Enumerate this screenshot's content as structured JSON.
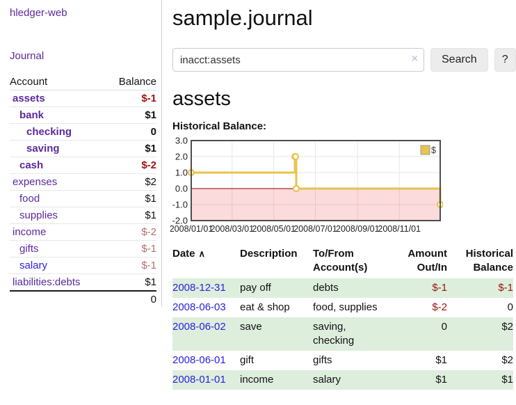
{
  "app": {
    "title": "hledger-web"
  },
  "sidebar": {
    "journal_label": "Journal",
    "accounts": {
      "header_account": "Account",
      "header_balance": "Balance",
      "rows": [
        {
          "name": "assets",
          "balance": "$-1",
          "indent": 0,
          "bold": true,
          "name_color": "purple",
          "balance_color": "neg-strong"
        },
        {
          "name": "bank",
          "balance": "$1",
          "indent": 1,
          "bold": true,
          "name_color": "purple",
          "balance_color": "pos"
        },
        {
          "name": "checking",
          "balance": "0",
          "indent": 2,
          "bold": true,
          "name_color": "purple",
          "balance_color": "pos"
        },
        {
          "name": "saving",
          "balance": "$1",
          "indent": 2,
          "bold": true,
          "name_color": "purple",
          "balance_color": "pos"
        },
        {
          "name": "cash",
          "balance": "$-2",
          "indent": 1,
          "bold": true,
          "name_color": "purple",
          "balance_color": "neg-strong"
        },
        {
          "name": "expenses",
          "balance": "$2",
          "indent": 0,
          "bold": false,
          "name_color": "purple",
          "balance_color": "pos"
        },
        {
          "name": "food",
          "balance": "$1",
          "indent": 1,
          "bold": false,
          "name_color": "purple",
          "balance_color": "pos"
        },
        {
          "name": "supplies",
          "balance": "$1",
          "indent": 1,
          "bold": false,
          "name_color": "purple",
          "balance_color": "pos"
        },
        {
          "name": "income",
          "balance": "$-2",
          "indent": 0,
          "bold": false,
          "name_color": "purple",
          "balance_color": "neg-muted"
        },
        {
          "name": "gifts",
          "balance": "$-1",
          "indent": 1,
          "bold": false,
          "name_color": "purple",
          "balance_color": "neg-muted"
        },
        {
          "name": "salary",
          "balance": "$-1",
          "indent": 1,
          "bold": false,
          "name_color": "blue",
          "balance_color": "neg-muted"
        },
        {
          "name": "liabilities:debts",
          "balance": "$1",
          "indent": 0,
          "bold": false,
          "name_color": "purple",
          "balance_color": "pos"
        }
      ],
      "total": "0"
    }
  },
  "main": {
    "title": "sample.journal",
    "search": {
      "value": "inacct:assets",
      "clear_icon": "×",
      "button_label": "Search",
      "help_label": "?"
    },
    "account_heading": "assets",
    "chart_label": "Historical Balance:",
    "register": {
      "headers": {
        "date": "Date",
        "sort_indicator": "∧",
        "description": "Description",
        "account_line1": "To/From",
        "account_line2": "Account(s)",
        "amount_line1": "Amount",
        "amount_line2": "Out/In",
        "balance_line1": "Historical",
        "balance_line2": "Balance"
      },
      "rows": [
        {
          "date": "2008-12-31",
          "description": "pay off",
          "accounts": "debts",
          "amount": "$-1",
          "amount_negative": true,
          "balance": "$-1",
          "balance_negative": true
        },
        {
          "date": "2008-06-03",
          "description": "eat & shop",
          "accounts": "food, supplies",
          "amount": "$-2",
          "amount_negative": true,
          "balance": "0",
          "balance_negative": false
        },
        {
          "date": "2008-06-02",
          "description": "save",
          "accounts": "saving, checking",
          "amount": "0",
          "amount_negative": false,
          "balance": "$2",
          "balance_negative": false
        },
        {
          "date": "2008-06-01",
          "description": "gift",
          "accounts": "gifts",
          "amount": "$1",
          "amount_negative": false,
          "balance": "$2",
          "balance_negative": false
        },
        {
          "date": "2008-01-01",
          "description": "income",
          "accounts": "salary",
          "amount": "$1",
          "amount_negative": false,
          "balance": "$1",
          "balance_negative": false
        }
      ]
    }
  },
  "chart_data": {
    "type": "line",
    "title": "Historical Balance",
    "step": true,
    "legend": {
      "label": "$",
      "position": "top-right"
    },
    "ylim": [
      -2.0,
      3.0
    ],
    "yticks": [
      3.0,
      2.0,
      1.0,
      0.0,
      -1.0,
      -2.0
    ],
    "xticks": [
      "2008/01/01",
      "2008/03/01",
      "2008/05/01",
      "2008/07/01",
      "2008/09/01",
      "2008/11/01"
    ],
    "x_span_days": 365,
    "negative_region_shaded": true,
    "series": [
      {
        "name": "$",
        "points": [
          {
            "date": "2008-01-01",
            "value": 1
          },
          {
            "date": "2008-06-01",
            "value": 2
          },
          {
            "date": "2008-06-02",
            "value": 2
          },
          {
            "date": "2008-06-03",
            "value": 0
          },
          {
            "date": "2008-12-31",
            "value": -1
          }
        ]
      }
    ]
  },
  "colors": {
    "link_purple": "#5b2a9d",
    "link_blue": "#2a22dd",
    "neg_strong": "#9c1212",
    "neg_muted": "#b56e6e",
    "row_stripe": "#ddeedd",
    "chart_line": "#e8c34e",
    "chart_neg_bg": "#fbdbdb",
    "chart_neg_grid": "#efc6c6",
    "chart_zero": "#8b0000"
  }
}
